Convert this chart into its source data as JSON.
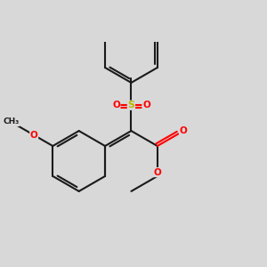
{
  "bg": "#d8d8d8",
  "bond_color": "#1a1a1a",
  "oxygen_color": "#ff0000",
  "sulfur_color": "#b8b800",
  "lw": 1.5,
  "dbo": 0.055,
  "s": 0.62,
  "xlim": [
    -2.4,
    3.0
  ],
  "ylim": [
    -1.5,
    2.6
  ]
}
